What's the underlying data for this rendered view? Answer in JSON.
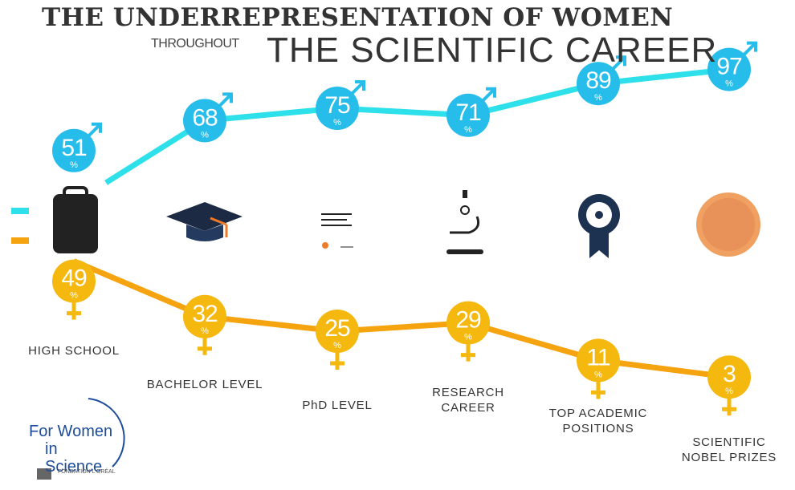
{
  "title": "THE UNDERREPRESENTATION OF WOMEN",
  "subtitle_small": "THROUGHOUT",
  "subtitle": "THE SCIENTIFIC CAREER",
  "logo": {
    "line1": "For Women",
    "line2": "in Science",
    "foundation": "FONDATION L'ORÉAL"
  },
  "chart_data": {
    "type": "line",
    "categories": [
      "HIGH SCHOOL",
      "BACHELOR LEVEL",
      "PhD LEVEL",
      "RESEARCH CAREER",
      "TOP ACADEMIC POSITIONS",
      "SCIENTIFIC NOBEL PRIZES"
    ],
    "percent_sign": "%",
    "series": [
      {
        "color": "#2ee0ea",
        "marker_color": "#27bdea",
        "values": [
          51,
          68,
          75,
          71,
          89,
          97
        ]
      },
      {
        "color": "#f5a30f",
        "marker_color": "#f5b80f",
        "values": [
          49,
          32,
          25,
          29,
          11,
          3
        ]
      }
    ]
  }
}
